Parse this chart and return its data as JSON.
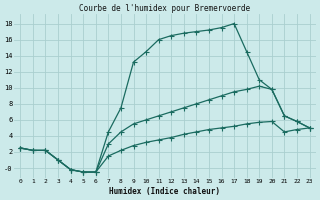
{
  "title": "Courbe de l'humidex pour Bremervoerde",
  "xlabel": "Humidex (Indice chaleur)",
  "bg_color": "#cceaea",
  "line_color": "#1a6b60",
  "grid_color": "#aacfcf",
  "xlim": [
    -0.5,
    23.5
  ],
  "ylim": [
    -1.2,
    19.2
  ],
  "xticks": [
    0,
    1,
    2,
    3,
    4,
    5,
    6,
    7,
    8,
    9,
    10,
    11,
    12,
    13,
    14,
    15,
    16,
    17,
    18,
    19,
    20,
    21,
    22,
    23
  ],
  "yticks": [
    0,
    2,
    4,
    6,
    8,
    10,
    12,
    14,
    16,
    18
  ],
  "ytick_labels": [
    "-0",
    "2",
    "4",
    "6",
    "8",
    "10",
    "12",
    "14",
    "16",
    "18"
  ],
  "line1_x": [
    0,
    1,
    2,
    3,
    4,
    5,
    6,
    7,
    8,
    9,
    10,
    11,
    12,
    13,
    14,
    15,
    16,
    17,
    18,
    19,
    20,
    21,
    22,
    23
  ],
  "line1_y": [
    2.5,
    2.2,
    2.2,
    1.0,
    -0.2,
    -0.5,
    -0.5,
    4.5,
    7.5,
    13.2,
    14.5,
    16.0,
    16.5,
    16.8,
    17.0,
    17.2,
    17.5,
    18.0,
    14.5,
    11.0,
    9.8,
    6.5,
    5.8,
    5.0
  ],
  "line2_x": [
    0,
    1,
    2,
    3,
    4,
    5,
    6,
    7,
    8,
    9,
    10,
    11,
    12,
    13,
    14,
    15,
    16,
    17,
    18,
    19,
    20,
    21,
    22,
    23
  ],
  "line2_y": [
    2.5,
    2.2,
    2.2,
    1.0,
    -0.2,
    -0.5,
    -0.5,
    3.0,
    4.5,
    5.5,
    6.0,
    6.5,
    7.0,
    7.5,
    8.0,
    8.5,
    9.0,
    9.5,
    9.8,
    10.2,
    9.8,
    6.5,
    5.8,
    5.0
  ],
  "line3_x": [
    0,
    1,
    2,
    3,
    4,
    5,
    6,
    7,
    8,
    9,
    10,
    11,
    12,
    13,
    14,
    15,
    16,
    17,
    18,
    19,
    20,
    21,
    22,
    23
  ],
  "line3_y": [
    2.5,
    2.2,
    2.2,
    1.0,
    -0.2,
    -0.5,
    -0.5,
    1.5,
    2.2,
    2.8,
    3.2,
    3.5,
    3.8,
    4.2,
    4.5,
    4.8,
    5.0,
    5.2,
    5.5,
    5.7,
    5.8,
    4.5,
    4.8,
    5.0
  ]
}
